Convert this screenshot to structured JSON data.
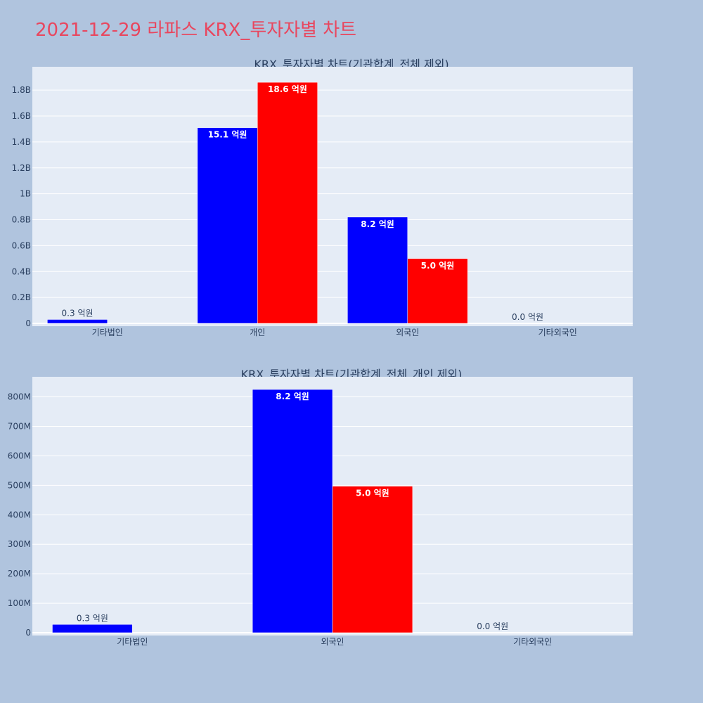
{
  "page": {
    "title": "2021-12-29 라파스 KRX_투자자별 차트",
    "background": "#b0c4de",
    "title_color": "#e8475f"
  },
  "chart_data": [
    {
      "type": "bar",
      "title": "KRX_투자자별 차트(기관합계_전체 제외)",
      "categories": [
        "기타법인",
        "개인",
        "외국인",
        "기타외국인"
      ],
      "series": [
        {
          "color": "#0000ff",
          "values": [
            30000000,
            1510000000,
            820000000,
            0
          ],
          "labels": [
            "0.3 억원",
            "15.1 억원",
            "8.2 억원",
            "0.0 억원"
          ]
        },
        {
          "color": "#ff0000",
          "values": [
            null,
            1860000000,
            500000000,
            null
          ],
          "labels": [
            "",
            "18.6 억원",
            "5.0 억원",
            ""
          ]
        }
      ],
      "ylim": [
        0,
        1980000000
      ],
      "yticks": [
        0,
        200000000,
        400000000,
        600000000,
        800000000,
        1000000000,
        1200000000,
        1400000000,
        1600000000,
        1800000000
      ],
      "ytick_labels": [
        "0",
        "0.2B",
        "0.4B",
        "0.6B",
        "0.8B",
        "1B",
        "1.2B",
        "1.4B",
        "1.6B",
        "1.8B"
      ],
      "grid": true,
      "plot_background": "#e5ecf6"
    },
    {
      "type": "bar",
      "title": "KRX_투자자별 차트(기관합계_전체_개인 제외)",
      "categories": [
        "기타법인",
        "외국인",
        "기타외국인"
      ],
      "series": [
        {
          "color": "#0000ff",
          "values": [
            28000000,
            825000000,
            0
          ],
          "labels": [
            "0.3 억원",
            "8.2 억원",
            "0.0 억원"
          ]
        },
        {
          "color": "#ff0000",
          "values": [
            null,
            497000000,
            null
          ],
          "labels": [
            "",
            "5.0 억원",
            ""
          ]
        }
      ],
      "ylim": [
        0,
        868000000
      ],
      "yticks": [
        0,
        100000000,
        200000000,
        300000000,
        400000000,
        500000000,
        600000000,
        700000000,
        800000000
      ],
      "ytick_labels": [
        "0",
        "100M",
        "200M",
        "300M",
        "400M",
        "500M",
        "600M",
        "700M",
        "800M"
      ],
      "grid": true,
      "plot_background": "#e5ecf6"
    }
  ]
}
